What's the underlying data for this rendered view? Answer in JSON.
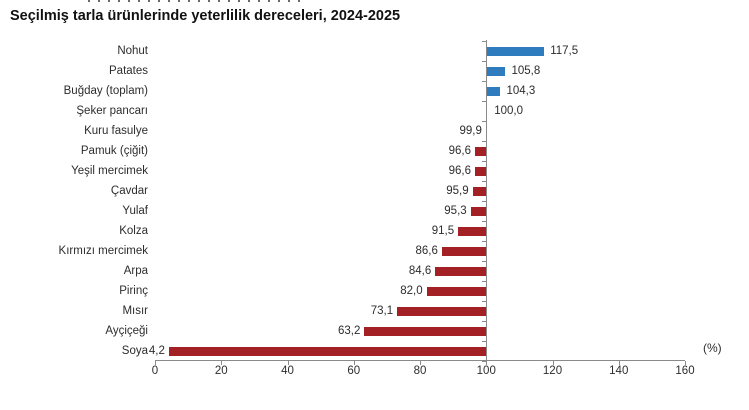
{
  "page": {
    "title": "Seçilmiş tarla ürünlerinde yeterlilik dereceleri, 2024-2025"
  },
  "chart_data": {
    "type": "bar",
    "orientation": "horizontal",
    "title": "Seçilmiş tarla ürünlerinde yeterlilik dereceleri, 2024-2025",
    "unit_label": "(%)",
    "baseline": 100,
    "categories": [
      "Nohut",
      "Patates",
      "Buğday (toplam)",
      "Şeker pancarı",
      "Kuru fasulye",
      "Pamuk (çiğit)",
      "Yeşil mercimek",
      "Çavdar",
      "Yulaf",
      "Kolza",
      "Kırmızı mercimek",
      "Arpa",
      "Pirinç",
      "Mısır",
      "Ayçiçeği",
      "Soya"
    ],
    "values": [
      117.5,
      105.8,
      104.3,
      100.0,
      99.9,
      96.6,
      96.6,
      95.9,
      95.3,
      91.5,
      86.6,
      84.6,
      82.0,
      73.1,
      63.2,
      4.2
    ],
    "value_labels": [
      "117,5",
      "105,8",
      "104,3",
      "100,0",
      "99,9",
      "96,6",
      "96,6",
      "95,9",
      "95,3",
      "91,5",
      "86,6",
      "84,6",
      "82,0",
      "73,1",
      "63,2",
      "4,2"
    ],
    "xlim": [
      0,
      160
    ],
    "xticks": [
      0,
      20,
      40,
      60,
      80,
      100,
      120,
      140,
      160
    ],
    "grid": false,
    "legend": false,
    "colors": {
      "above_baseline": "#2e7bbe",
      "below_baseline": "#a32024",
      "axis": "#8a8a8a",
      "text": "#2d2d2d"
    }
  }
}
